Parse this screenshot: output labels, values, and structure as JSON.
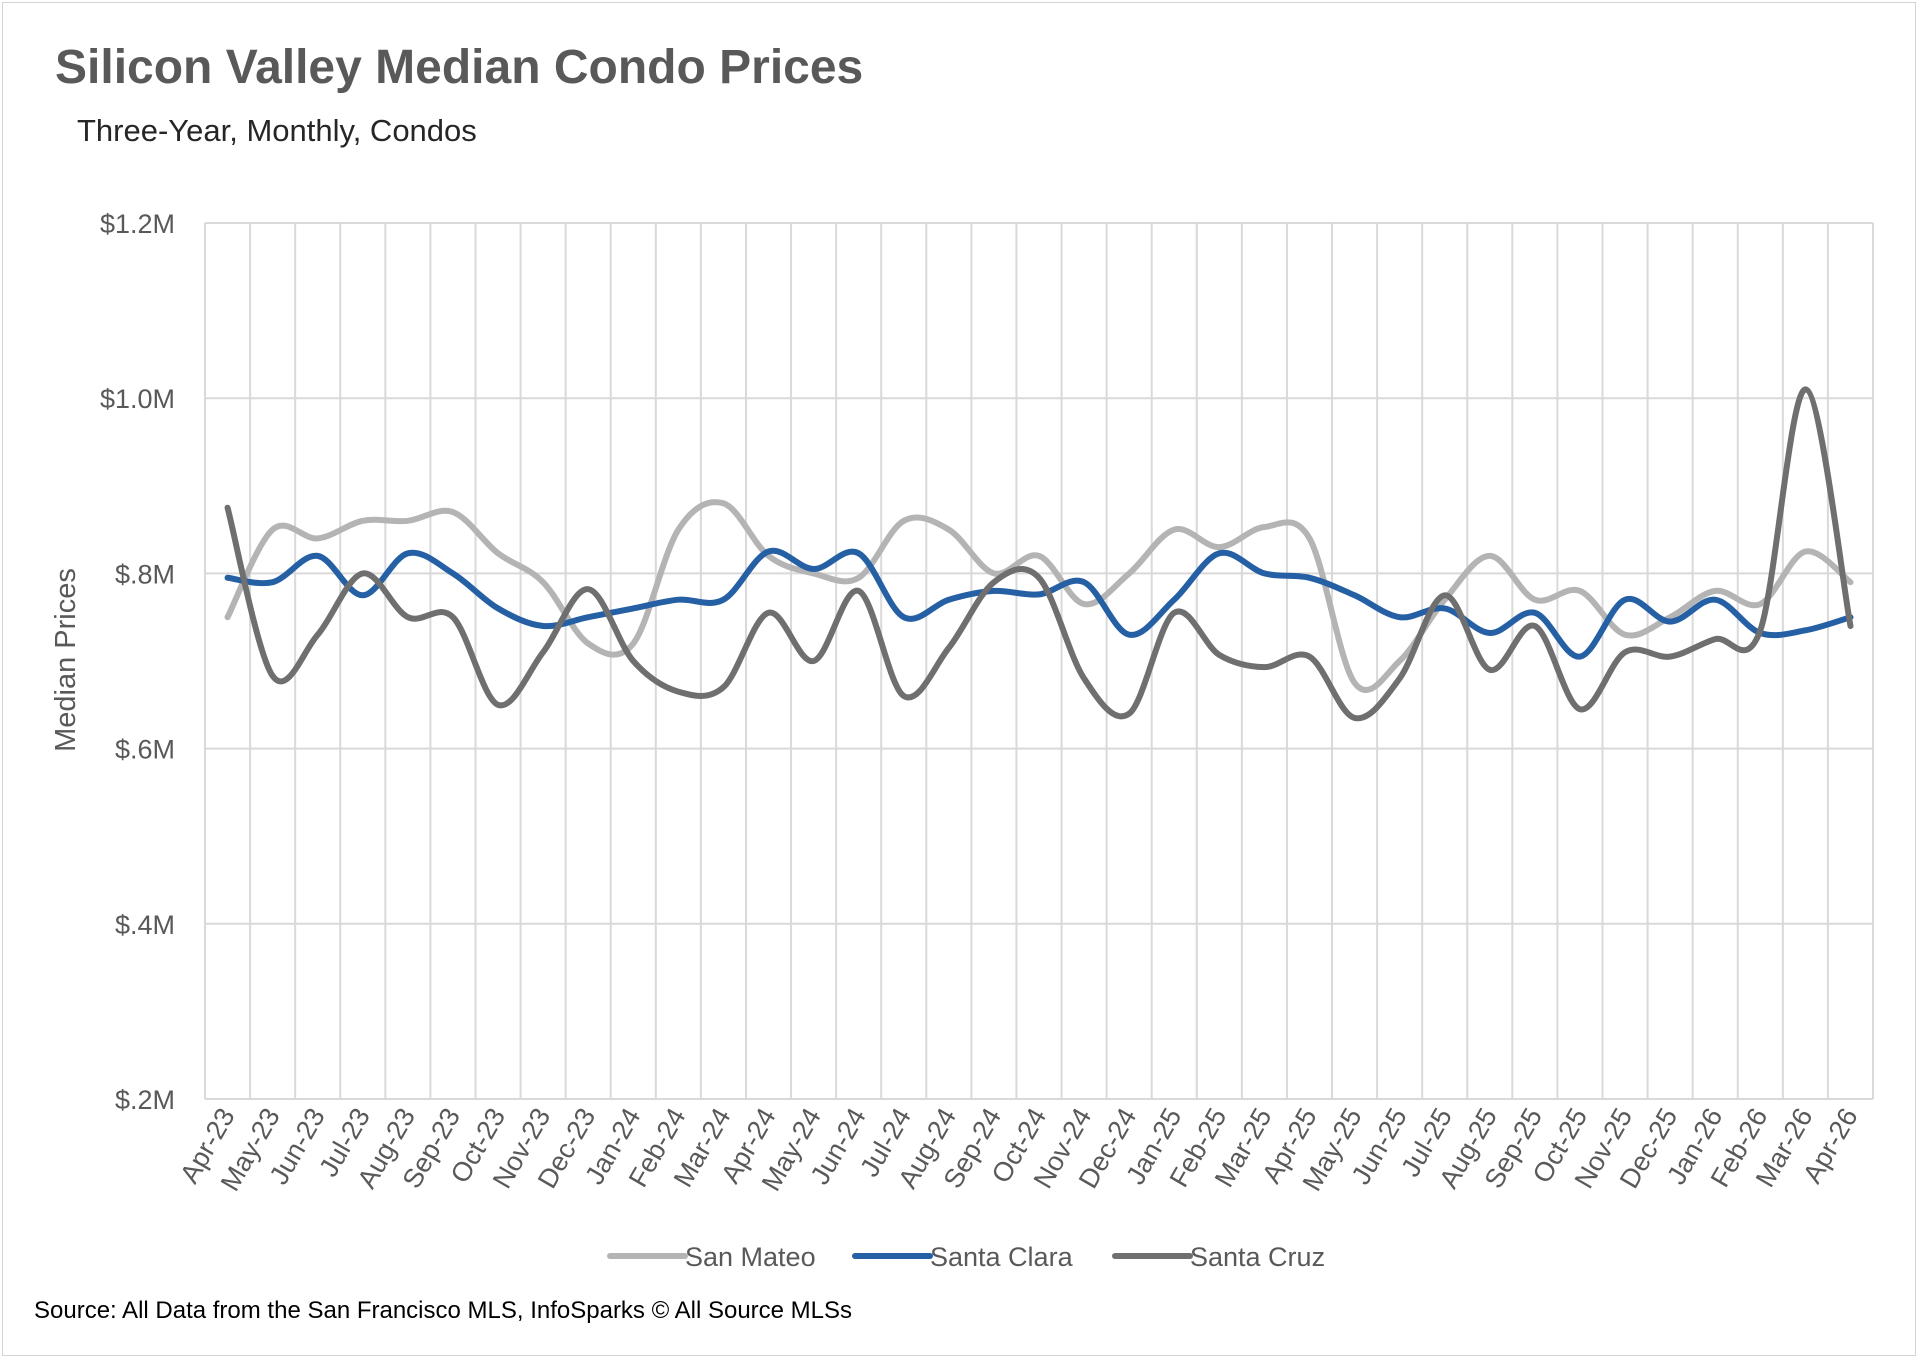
{
  "chart_data": {
    "type": "line",
    "title": "Silicon Valley Median Condo Prices",
    "subtitle": "Three-Year, Monthly, Condos",
    "ylabel": "Median Prices",
    "xlabel": "",
    "source": "Source: All Data from the San Francisco MLS, InfoSparks © All Source MLSs",
    "ylim": [
      0.2,
      1.2
    ],
    "y_ticks": [
      {
        "value": 1.2,
        "label": "$1.2M"
      },
      {
        "value": 1.0,
        "label": "$1.0M"
      },
      {
        "value": 0.8,
        "label": "$.8M"
      },
      {
        "value": 0.6,
        "label": "$.6M"
      },
      {
        "value": 0.4,
        "label": "$.4M"
      },
      {
        "value": 0.2,
        "label": "$.2M"
      }
    ],
    "categories": [
      "Apr-23",
      "May-23",
      "Jun-23",
      "Jul-23",
      "Aug-23",
      "Sep-23",
      "Oct-23",
      "Nov-23",
      "Dec-23",
      "Jan-24",
      "Feb-24",
      "Mar-24",
      "Apr-24",
      "May-24",
      "Jun-24",
      "Jul-24",
      "Aug-24",
      "Sep-24",
      "Oct-24",
      "Nov-24",
      "Dec-24",
      "Jan-25",
      "Feb-25",
      "Mar-25",
      "Apr-25",
      "May-25",
      "Jun-25",
      "Jul-25",
      "Aug-25",
      "Sep-25",
      "Oct-25",
      "Nov-25",
      "Dec-25",
      "Jan-26",
      "Feb-26",
      "Mar-26",
      "Apr-26"
    ],
    "grid": true,
    "legend_position": "bottom",
    "series": [
      {
        "name": "San Mateo",
        "color": "#b4b4b4",
        "values": [
          0.75,
          0.85,
          0.84,
          0.86,
          0.86,
          0.87,
          0.823,
          0.79,
          0.72,
          0.72,
          0.85,
          0.88,
          0.82,
          0.8,
          0.795,
          0.86,
          0.85,
          0.8,
          0.82,
          0.765,
          0.8,
          0.85,
          0.83,
          0.853,
          0.84,
          0.675,
          0.7,
          0.77,
          0.82,
          0.77,
          0.78,
          0.73,
          0.75,
          0.78,
          0.765,
          0.825,
          0.79
        ]
      },
      {
        "name": "Santa Clara",
        "color": "#2660a4",
        "values": [
          0.795,
          0.79,
          0.82,
          0.775,
          0.823,
          0.8,
          0.76,
          0.74,
          0.75,
          0.76,
          0.77,
          0.77,
          0.825,
          0.805,
          0.823,
          0.75,
          0.77,
          0.78,
          0.776,
          0.79,
          0.73,
          0.77,
          0.823,
          0.8,
          0.795,
          0.775,
          0.75,
          0.76,
          0.732,
          0.755,
          0.705,
          0.77,
          0.745,
          0.77,
          0.732,
          0.735,
          0.75
        ]
      },
      {
        "name": "Santa Cruz",
        "color": "#6f6f6f",
        "values": [
          0.875,
          0.683,
          0.73,
          0.8,
          0.75,
          0.75,
          0.65,
          0.71,
          0.782,
          0.7,
          0.665,
          0.67,
          0.755,
          0.7,
          0.78,
          0.66,
          0.715,
          0.79,
          0.795,
          0.68,
          0.64,
          0.755,
          0.707,
          0.693,
          0.705,
          0.635,
          0.68,
          0.775,
          0.69,
          0.74,
          0.645,
          0.71,
          0.705,
          0.725,
          0.735,
          1.01,
          0.74
        ]
      }
    ]
  }
}
